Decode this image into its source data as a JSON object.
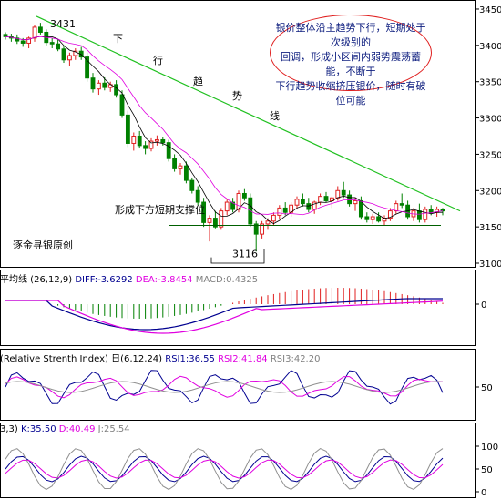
{
  "chart_data": {
    "type": "candlestick",
    "panels": [
      {
        "name": "price",
        "yticks": [
          3100,
          3150,
          3200,
          3250,
          3300,
          3350,
          3400,
          3450
        ],
        "ylim": [
          3095,
          3460
        ],
        "candles": [
          [
            3415,
            3418,
            3408,
            3412
          ],
          [
            3412,
            3416,
            3405,
            3410
          ],
          [
            3410,
            3415,
            3402,
            3406
          ],
          [
            3406,
            3410,
            3398,
            3403
          ],
          [
            3403,
            3412,
            3396,
            3410
          ],
          [
            3410,
            3428,
            3405,
            3425
          ],
          [
            3425,
            3431,
            3415,
            3418
          ],
          [
            3418,
            3422,
            3400,
            3404
          ],
          [
            3404,
            3410,
            3396,
            3402
          ],
          [
            3402,
            3408,
            3392,
            3395
          ],
          [
            3395,
            3400,
            3376,
            3380
          ],
          [
            3380,
            3390,
            3372,
            3386
          ],
          [
            3386,
            3396,
            3380,
            3392
          ],
          [
            3392,
            3398,
            3380,
            3384
          ],
          [
            3384,
            3390,
            3350,
            3355
          ],
          [
            3355,
            3362,
            3335,
            3340
          ],
          [
            3340,
            3352,
            3332,
            3348
          ],
          [
            3348,
            3356,
            3338,
            3342
          ],
          [
            3342,
            3350,
            3336,
            3346
          ],
          [
            3346,
            3352,
            3328,
            3332
          ],
          [
            3332,
            3338,
            3300,
            3304
          ],
          [
            3304,
            3310,
            3260,
            3265
          ],
          [
            3265,
            3280,
            3255,
            3275
          ],
          [
            3275,
            3282,
            3258,
            3262
          ],
          [
            3262,
            3268,
            3250,
            3258
          ],
          [
            3258,
            3272,
            3254,
            3268
          ],
          [
            3268,
            3276,
            3262,
            3270
          ],
          [
            3270,
            3274,
            3262,
            3266
          ],
          [
            3266,
            3270,
            3240,
            3244
          ],
          [
            3244,
            3250,
            3226,
            3230
          ],
          [
            3230,
            3238,
            3222,
            3234
          ],
          [
            3234,
            3240,
            3210,
            3214
          ],
          [
            3214,
            3218,
            3196,
            3200
          ],
          [
            3200,
            3206,
            3180,
            3184
          ],
          [
            3184,
            3190,
            3150,
            3156
          ],
          [
            3156,
            3166,
            3130,
            3162
          ],
          [
            3162,
            3172,
            3148,
            3150
          ],
          [
            3150,
            3176,
            3146,
            3172
          ],
          [
            3172,
            3188,
            3166,
            3184
          ],
          [
            3184,
            3190,
            3170,
            3174
          ],
          [
            3174,
            3200,
            3170,
            3196
          ],
          [
            3196,
            3202,
            3186,
            3190
          ],
          [
            3190,
            3196,
            3150,
            3154
          ],
          [
            3154,
            3158,
            3116,
            3140
          ],
          [
            3140,
            3158,
            3134,
            3154
          ],
          [
            3154,
            3162,
            3146,
            3158
          ],
          [
            3158,
            3170,
            3152,
            3166
          ],
          [
            3166,
            3180,
            3160,
            3176
          ],
          [
            3176,
            3184,
            3166,
            3170
          ],
          [
            3170,
            3184,
            3164,
            3180
          ],
          [
            3180,
            3192,
            3174,
            3188
          ],
          [
            3188,
            3196,
            3178,
            3182
          ],
          [
            3182,
            3190,
            3170,
            3174
          ],
          [
            3174,
            3186,
            3168,
            3184
          ],
          [
            3184,
            3196,
            3180,
            3192
          ],
          [
            3192,
            3198,
            3184,
            3186
          ],
          [
            3186,
            3192,
            3176,
            3190
          ],
          [
            3190,
            3206,
            3186,
            3200
          ],
          [
            3200,
            3212,
            3190,
            3194
          ],
          [
            3194,
            3200,
            3178,
            3182
          ],
          [
            3182,
            3190,
            3172,
            3186
          ],
          [
            3186,
            3192,
            3160,
            3164
          ],
          [
            3164,
            3170,
            3156,
            3160
          ],
          [
            3160,
            3168,
            3154,
            3164
          ],
          [
            3164,
            3170,
            3156,
            3158
          ],
          [
            3158,
            3166,
            3152,
            3162
          ],
          [
            3162,
            3176,
            3158,
            3172
          ],
          [
            3172,
            3186,
            3168,
            3182
          ],
          [
            3182,
            3196,
            3176,
            3180
          ],
          [
            3180,
            3186,
            3160,
            3164
          ],
          [
            3164,
            3176,
            3158,
            3172
          ],
          [
            3172,
            3182,
            3156,
            3160
          ],
          [
            3160,
            3178,
            3156,
            3174
          ],
          [
            3174,
            3180,
            3166,
            3170
          ],
          [
            3170,
            3178,
            3164,
            3174
          ],
          [
            3174,
            3176,
            3166,
            3172
          ]
        ],
        "annotations": [
          "3431",
          "3116"
        ],
        "title_text": [
          "下",
          "行",
          "趋",
          "势",
          "线"
        ],
        "support_label": "形成下方短期支撑位",
        "watermark": "逐金寻银原创",
        "note": [
          "银价整体沿主趋势下行，短期处于次级别的",
          "回调，形成小区间内弱势震荡蓄能，不断于",
          "下行趋势收缩挤压银价，随时有破位可能"
        ]
      },
      {
        "name": "macd",
        "header": "平均线 (26,12,9)",
        "diff_label": "DIFF:-3.6292",
        "dea_label": "DEA:-3.8454",
        "macd_label": "MACD:0.4325",
        "yticks": [
          0
        ]
      },
      {
        "name": "rsi",
        "header": "(Relative Strenth Index) 日(6,12,24)",
        "rsi1_label": "RSI1:36.55",
        "rsi2_label": "RSI2:41.84",
        "rsi3_label": "RSI3:42.20",
        "yticks": [
          50
        ]
      },
      {
        "name": "kdj",
        "header": "3,3)",
        "k_label": "K:35.50",
        "d_label": "D:40.49",
        "j_label": "J:25.54",
        "yticks": [
          0,
          50,
          100
        ]
      }
    ]
  },
  "colors": {
    "up": "#e02020",
    "down": "#008000",
    "trend": "#20c020",
    "blue": "#000090",
    "magenta": "#e000e0",
    "gray": "#909090"
  }
}
